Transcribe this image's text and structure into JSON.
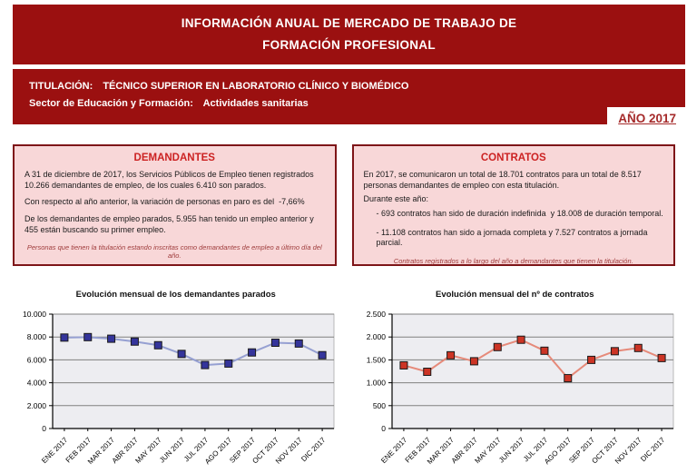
{
  "colors": {
    "band_red": "#9B1010",
    "box_background": "#F8D7D8",
    "box_border": "#7E1518",
    "box_title_red": "#CC2222",
    "footnote_red": "#9E3A3A",
    "year_red": "#A52A2A",
    "plot_background": "#EDEDF1",
    "gridline_gray": "#808080"
  },
  "header": {
    "line1": "INFORMACIÓN ANUAL DE MERCADO DE TRABAJO DE",
    "line2": "FORMACIÓN PROFESIONAL"
  },
  "subheader": {
    "titulacion_label": "TITULACIÓN:",
    "titulacion_value": "TÉCNICO SUPERIOR EN LABORATORIO CLÍNICO Y BIOMÉDICO",
    "sector_label": "Sector de Educación y Formación:",
    "sector_value": "Actividades sanitarias",
    "year_badge": "AÑO 2017"
  },
  "demandantes": {
    "title": "DEMANDANTES",
    "p1": "A 31 de diciembre de 2017, los Servicios Públicos de Empleo tienen registrados 10.266 demandantes de empleo, de los cuales 6.410 son parados.",
    "p2": "Con respecto al año anterior, la variación de personas en paro es del  -7,66%",
    "p3": "De los demandantes de empleo parados, 5.955 han tenido un empleo anterior y 455 están buscando su primer empleo.",
    "footnote": "Personas que tienen la titulación estando inscritas como demandantes de empleo a último día del año."
  },
  "contratos": {
    "title": "CONTRATOS",
    "p1": "En 2017, se comunicaron un total de 18.701 contratos para un total de 8.517 personas demandantes de empleo con esta titulación.",
    "p2": "Durante este año:",
    "bullet1": "- 693 contratos han sido de duración indefinida  y 18.008 de duración temporal.",
    "bullet2": "- 11.108 contratos han sido a jornada completa y 7.527 contratos a jornada parcial.",
    "footnote": "Contratos registrados a lo largo del año a demandantes que tienen la titulación."
  },
  "chart_data": [
    {
      "type": "line",
      "title": "Evolución mensual de los demandantes parados",
      "categories": [
        "ENE 2017",
        "FEB 2017",
        "MAR 2017",
        "ABR 2017",
        "MAY 2017",
        "JUN 2017",
        "JUL 2017",
        "AGO 2017",
        "SEP 2017",
        "OCT 2017",
        "NOV 2017",
        "DIC 2017"
      ],
      "values": [
        7950,
        7990,
        7850,
        7600,
        7280,
        6520,
        5550,
        5680,
        6650,
        7500,
        7430,
        6410
      ],
      "ylim": [
        0,
        10000
      ],
      "yticks": [
        "0",
        "2.000",
        "4.000",
        "6.000",
        "8.000",
        "10.000"
      ],
      "grid": "horizontal",
      "legend": "none",
      "line_color": "#96A0D2",
      "marker_color": "#34349B"
    },
    {
      "type": "line",
      "title": "Evolución mensual del nº de contratos",
      "categories": [
        "ENE 2017",
        "FEB 2017",
        "MAR 2017",
        "ABR 2017",
        "MAY 2017",
        "JUN 2017",
        "JUL 2017",
        "AGO 2017",
        "SEP 2017",
        "OCT 2017",
        "NOV 2017",
        "DIC 2017"
      ],
      "values": [
        1380,
        1240,
        1600,
        1470,
        1780,
        1940,
        1700,
        1100,
        1500,
        1690,
        1760,
        1540
      ],
      "ylim": [
        0,
        2500
      ],
      "yticks": [
        "0",
        "500",
        "1.000",
        "1.500",
        "2.000",
        "2.500"
      ],
      "grid": "horizontal",
      "legend": "none",
      "line_color": "#E68A7A",
      "marker_color": "#CC3425"
    }
  ]
}
